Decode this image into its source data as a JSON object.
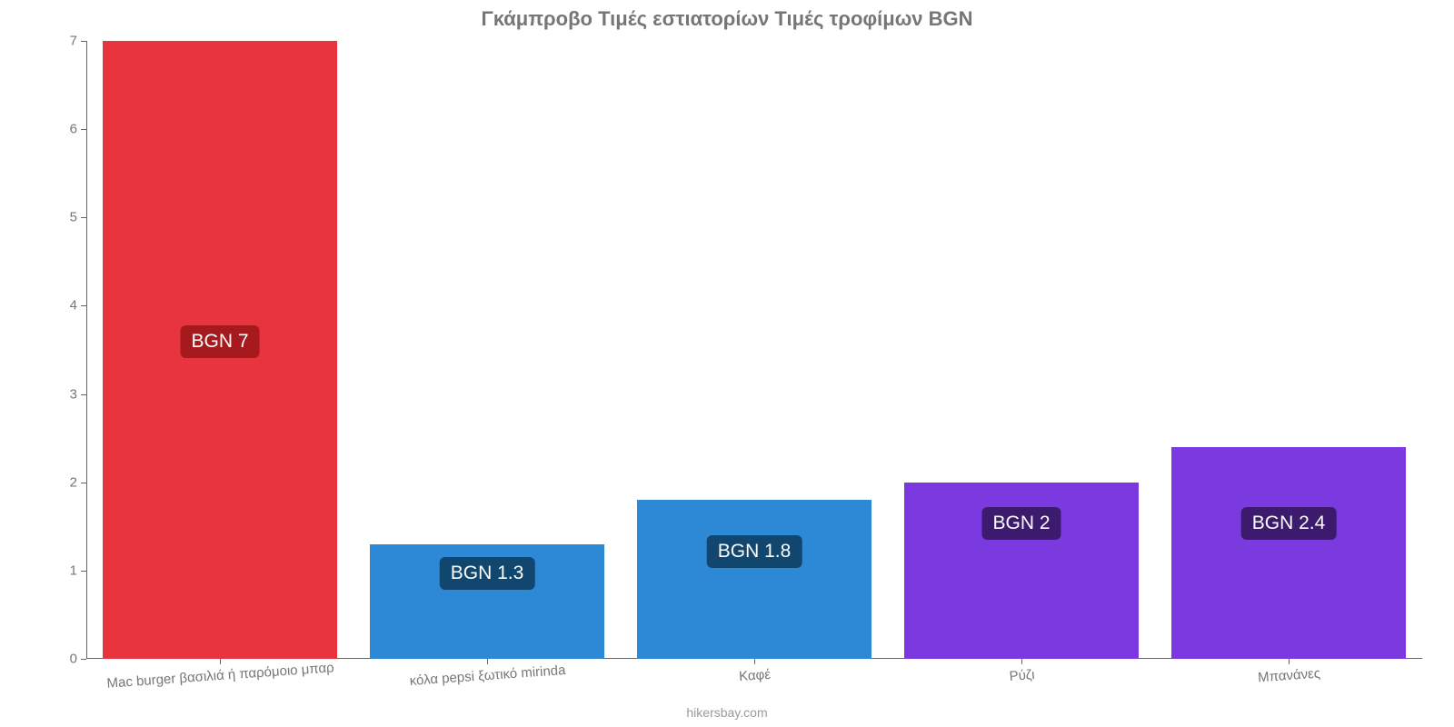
{
  "chart": {
    "type": "bar",
    "title": "Γκάμπροβο Τιμές εστιατορίων Τιμές τροφίμων BGN",
    "title_fontsize": 22,
    "title_color": "#767676",
    "background_color": "#ffffff",
    "axis_color": "#666666",
    "tick_label_color": "#767676",
    "tick_label_fontsize": 15,
    "x_tick_label_fontsize": 15,
    "ylim": [
      0,
      7
    ],
    "ytick_step": 1,
    "bar_width_ratio": 0.88,
    "categories": [
      "Mac burger βασιλιά ή παρόμοιο μπαρ",
      "κόλα pepsi ξωτικό mirinda",
      "Καφέ",
      "Ρύζι",
      "Μπανάνες"
    ],
    "values": [
      7,
      1.3,
      1.8,
      2,
      2.4
    ],
    "value_labels": [
      "BGN 7",
      "BGN 1.3",
      "BGN 1.8",
      "BGN 2",
      "BGN 2.4"
    ],
    "bar_colors": [
      "#e8343e",
      "#2d89d6",
      "#2d89d6",
      "#7b3ae0",
      "#7b3ae0"
    ],
    "label_bg_colors": [
      "#a6191d",
      "#11476f",
      "#11476f",
      "#3c1a6e",
      "#3c1a6e"
    ],
    "label_fontsize": 21,
    "attribution": "hikersbay.com",
    "attribution_fontsize": 14,
    "attribution_color": "#9a9a9a"
  }
}
